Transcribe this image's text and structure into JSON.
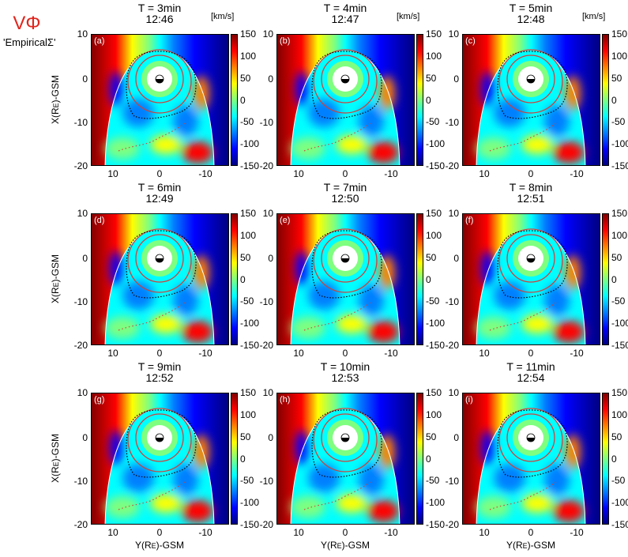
{
  "figure": {
    "quantity_symbol": "VΦ",
    "model_label": "'EmpiricalΣ'",
    "unit_label": "[km/s]",
    "y_axis_label_main": "X(R",
    "axis_label_sub": "E",
    "y_axis_label_tail": ")-GSM",
    "x_axis_label_main": "Y(R",
    "x_axis_label_tail": ")-GSM",
    "x_ticks": [
      "10",
      "0",
      "-10"
    ],
    "y_ticks": [
      "10",
      "0",
      "-10",
      "-20"
    ],
    "colorbar_ticks": [
      "150",
      "100",
      "50",
      "0",
      "-50",
      "-100",
      "-150"
    ],
    "colors": {
      "colormap": [
        "#00007f",
        "#0000ff",
        "#007fff",
        "#00ffff",
        "#7fff7f",
        "#ffff00",
        "#ff7f00",
        "#ff0000",
        "#7f0000"
      ],
      "inner_ring": "#7fff7f",
      "contour_red": "#d0413a",
      "contour_black": "#000000",
      "boundary": "#ffffff"
    },
    "panels": [
      {
        "letter": "(a)",
        "time_line": "T = 3min",
        "clock": "12:46"
      },
      {
        "letter": "(b)",
        "time_line": "T = 4min",
        "clock": "12:47"
      },
      {
        "letter": "(c)",
        "time_line": "T = 5min",
        "clock": "12:48"
      },
      {
        "letter": "(d)",
        "time_line": "T = 6min",
        "clock": "12:49"
      },
      {
        "letter": "(e)",
        "time_line": "T = 7min",
        "clock": "12:50"
      },
      {
        "letter": "(f)",
        "time_line": "T = 8min",
        "clock": "12:51"
      },
      {
        "letter": "(g)",
        "time_line": "T = 9min",
        "clock": "12:52"
      },
      {
        "letter": "(h)",
        "time_line": "T = 10min",
        "clock": "12:53"
      },
      {
        "letter": "(i)",
        "time_line": "T = 11min",
        "clock": "12:54"
      }
    ]
  }
}
